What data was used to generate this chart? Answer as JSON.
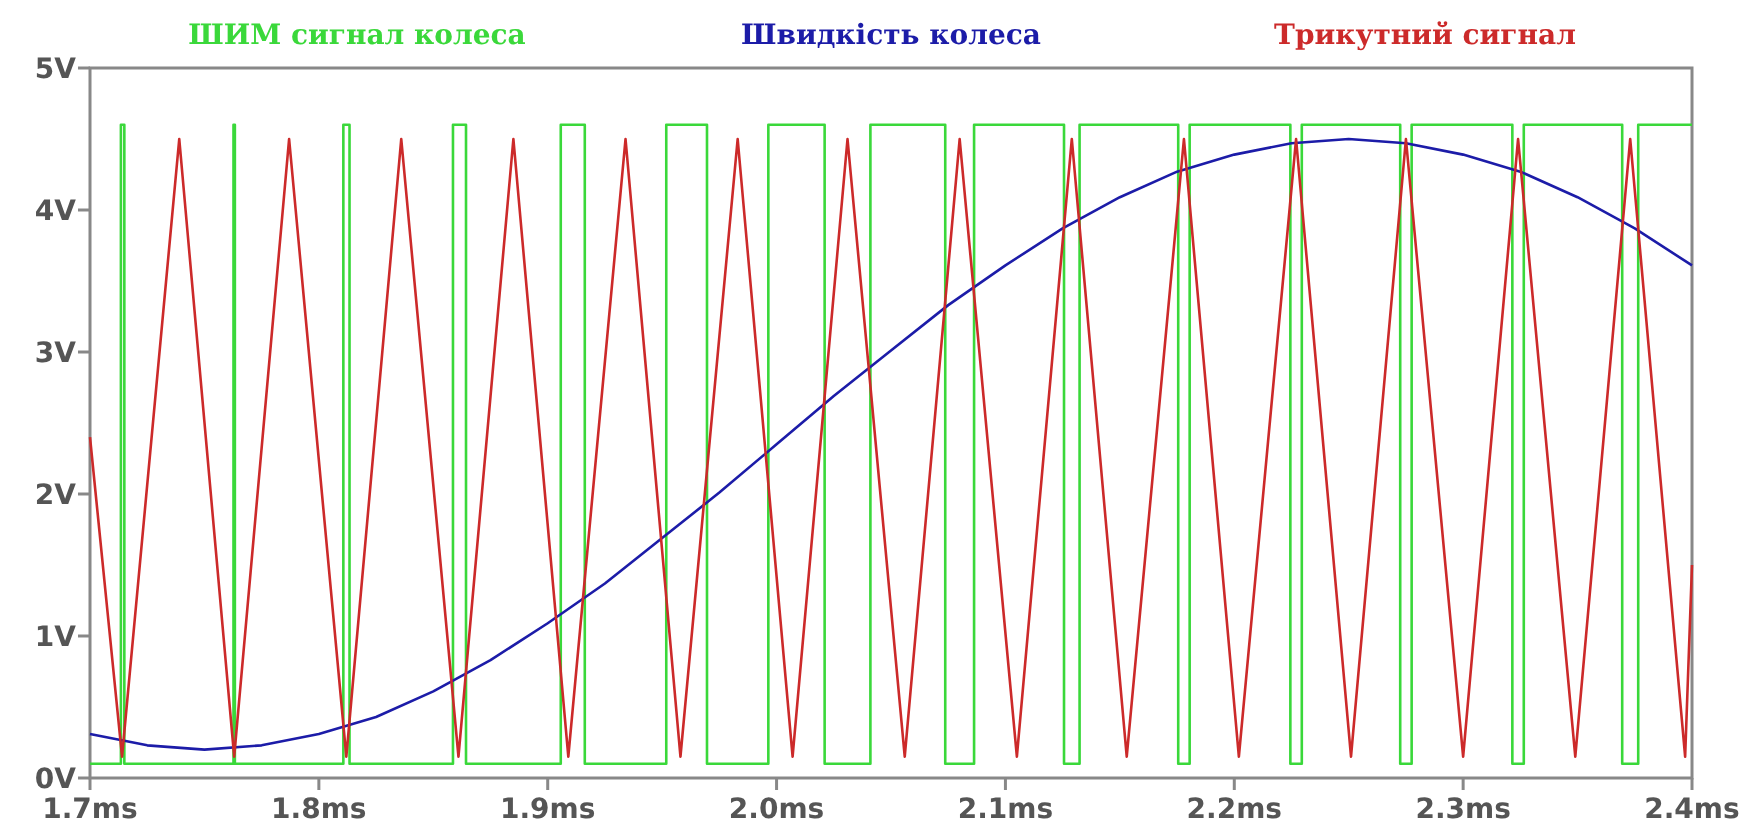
{
  "chart_data": {
    "type": "line",
    "legend": "top",
    "xlim": [
      1.7,
      2.4
    ],
    "ylim": [
      0,
      5
    ],
    "xticks": [
      {
        "value": 1.7,
        "label": "1.7ms"
      },
      {
        "value": 1.8,
        "label": "1.8ms"
      },
      {
        "value": 1.9,
        "label": "1.9ms"
      },
      {
        "value": 2.0,
        "label": "2.0ms"
      },
      {
        "value": 2.1,
        "label": "2.1ms"
      },
      {
        "value": 2.2,
        "label": "2.2ms"
      },
      {
        "value": 2.3,
        "label": "2.3ms"
      },
      {
        "value": 2.4,
        "label": "2.4ms"
      }
    ],
    "yticks": [
      {
        "value": 0,
        "label": "0V"
      },
      {
        "value": 1,
        "label": "1V"
      },
      {
        "value": 2,
        "label": "2V"
      },
      {
        "value": 3,
        "label": "3V"
      },
      {
        "value": 4,
        "label": "4V"
      },
      {
        "value": 5,
        "label": "5V"
      }
    ],
    "series": [
      {
        "name": "ШИМ сигнал колеса",
        "type": "step",
        "color": "#3ad83a",
        "x": [
          1.7,
          1.7135,
          1.715,
          1.7627,
          1.7633,
          1.8107,
          1.8134,
          1.8586,
          1.8643,
          1.9057,
          1.9162,
          1.9518,
          1.9696,
          1.9964,
          2.021,
          2.041,
          2.0737,
          2.0863,
          2.1256,
          2.1324,
          2.1755,
          2.1805,
          2.2245,
          2.2295,
          2.2725,
          2.2775,
          2.3215,
          2.3265,
          2.3695,
          2.3765,
          2.4
        ],
        "values": [
          0.1,
          4.6,
          0.1,
          4.6,
          0.1,
          4.6,
          0.1,
          4.6,
          0.1,
          4.6,
          0.1,
          4.6,
          0.1,
          4.6,
          0.1,
          4.6,
          0.1,
          4.6,
          0.1,
          4.6,
          0.1,
          4.6,
          0.1,
          4.6,
          0.1,
          4.6,
          0.1,
          4.6,
          0.1,
          4.6,
          4.6
        ]
      },
      {
        "name": "Швидкість колеса",
        "color": "#1c1ca8",
        "x": [
          1.7,
          1.725,
          1.75,
          1.775,
          1.8,
          1.825,
          1.85,
          1.875,
          1.9,
          1.925,
          1.95,
          1.975,
          2.0,
          2.025,
          2.05,
          2.075,
          2.1,
          2.125,
          2.15,
          2.175,
          2.2,
          2.225,
          2.25,
          2.275,
          2.3,
          2.325,
          2.35,
          2.375,
          2.4
        ],
        "values": [
          0.31,
          0.23,
          0.2,
          0.23,
          0.31,
          0.43,
          0.61,
          0.83,
          1.09,
          1.37,
          1.69,
          2.01,
          2.35,
          2.69,
          3.01,
          3.33,
          3.61,
          3.87,
          4.09,
          4.27,
          4.39,
          4.47,
          4.5,
          4.47,
          4.39,
          4.27,
          4.09,
          3.87,
          3.61
        ]
      },
      {
        "name": "Трикутний сигнал",
        "color": "#cc2a2a",
        "x": [
          1.7,
          1.714,
          1.739,
          1.763,
          1.787,
          1.812,
          1.836,
          1.861,
          1.885,
          1.909,
          1.934,
          1.958,
          1.983,
          2.007,
          2.031,
          2.056,
          2.08,
          2.105,
          2.129,
          2.153,
          2.178,
          2.202,
          2.227,
          2.251,
          2.275,
          2.3,
          2.324,
          2.349,
          2.373,
          2.397,
          2.4
        ],
        "values": [
          2.4,
          0.15,
          4.5,
          0.15,
          4.5,
          0.15,
          4.5,
          0.15,
          4.5,
          0.15,
          4.5,
          0.15,
          4.5,
          0.15,
          4.5,
          0.15,
          4.5,
          0.15,
          4.5,
          0.15,
          4.5,
          0.15,
          4.5,
          0.15,
          4.5,
          0.15,
          4.5,
          0.15,
          4.5,
          0.15,
          1.5
        ]
      }
    ]
  }
}
